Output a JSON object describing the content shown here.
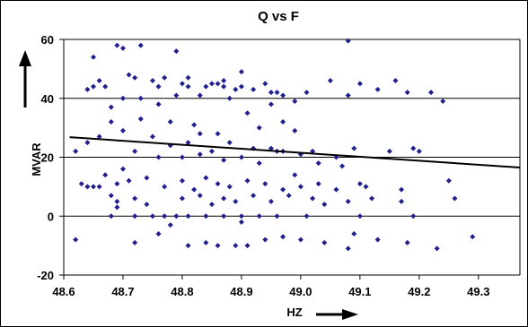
{
  "chart_data": {
    "type": "scatter",
    "title": "Q vs F",
    "xlabel": "HZ",
    "ylabel": "MVAR",
    "xlim": [
      48.6,
      49.37
    ],
    "ylim": [
      -20,
      60
    ],
    "xticks": [
      "48.6",
      "48.7",
      "48.8",
      "48.9",
      "49.0",
      "49.1",
      "49.2",
      "49.3"
    ],
    "yticks": [
      "60",
      "40",
      "20",
      "0",
      "-20"
    ],
    "xtick_values": [
      48.6,
      48.7,
      48.8,
      48.9,
      49.0,
      49.1,
      49.2,
      49.3
    ],
    "ytick_values": [
      60,
      40,
      20,
      0,
      -20
    ],
    "grid": "horizontal",
    "legend": "none",
    "marker_color": "#1f1f8f",
    "trendline": {
      "x": [
        48.61,
        49.37
      ],
      "y": [
        26.8,
        16.5
      ],
      "color": "#000000"
    },
    "series": [
      {
        "points": [
          [
            48.65,
            54
          ],
          [
            48.69,
            58
          ],
          [
            48.7,
            57
          ],
          [
            48.73,
            58
          ],
          [
            48.79,
            56
          ],
          [
            49.08,
            59.5
          ],
          [
            48.64,
            43
          ],
          [
            48.65,
            44
          ],
          [
            48.66,
            46
          ],
          [
            48.67,
            44
          ],
          [
            48.71,
            48
          ],
          [
            48.72,
            47
          ],
          [
            48.75,
            46
          ],
          [
            48.77,
            47
          ],
          [
            48.8,
            45
          ],
          [
            48.81,
            44
          ],
          [
            48.84,
            44
          ],
          [
            48.85,
            45
          ],
          [
            48.86,
            45
          ],
          [
            48.87,
            44
          ],
          [
            48.89,
            43
          ],
          [
            48.9,
            44
          ],
          [
            48.92,
            43
          ],
          [
            48.94,
            45
          ],
          [
            48.97,
            41
          ],
          [
            49.01,
            42
          ],
          [
            49.05,
            46
          ],
          [
            49.1,
            45
          ],
          [
            49.13,
            43
          ],
          [
            49.16,
            46
          ],
          [
            49.18,
            42
          ],
          [
            49.22,
            42
          ],
          [
            49.24,
            39
          ],
          [
            48.68,
            37
          ],
          [
            48.7,
            40
          ],
          [
            48.73,
            40
          ],
          [
            48.76,
            38
          ],
          [
            48.79,
            41
          ],
          [
            48.83,
            41
          ],
          [
            48.88,
            40
          ],
          [
            48.95,
            38
          ],
          [
            48.99,
            39
          ],
          [
            49.08,
            41
          ],
          [
            48.81,
            47
          ],
          [
            48.9,
            49
          ],
          [
            48.96,
            42
          ],
          [
            48.68,
            32
          ],
          [
            48.73,
            33
          ],
          [
            48.78,
            32
          ],
          [
            48.82,
            31
          ],
          [
            48.86,
            28
          ],
          [
            48.91,
            35
          ],
          [
            48.93,
            30
          ],
          [
            48.97,
            32
          ],
          [
            48.99,
            29
          ],
          [
            48.7,
            29
          ],
          [
            48.75,
            27
          ],
          [
            48.78,
            24
          ],
          [
            48.81,
            25
          ],
          [
            48.85,
            22
          ],
          [
            48.88,
            25
          ],
          [
            48.92,
            23
          ],
          [
            48.95,
            23
          ],
          [
            48.97,
            22
          ],
          [
            49.0,
            21
          ],
          [
            49.02,
            22
          ],
          [
            49.06,
            20
          ],
          [
            49.09,
            23
          ],
          [
            49.15,
            22
          ],
          [
            49.2,
            22
          ],
          [
            49.19,
            23
          ],
          [
            48.62,
            22
          ],
          [
            48.64,
            25
          ],
          [
            48.66,
            27
          ],
          [
            48.72,
            22
          ],
          [
            48.76,
            20
          ],
          [
            48.8,
            20
          ],
          [
            48.83,
            21
          ],
          [
            48.87,
            19
          ],
          [
            48.9,
            20
          ],
          [
            48.93,
            18
          ],
          [
            48.96,
            22
          ],
          [
            49.03,
            18
          ],
          [
            49.07,
            17
          ],
          [
            48.63,
            11
          ],
          [
            48.64,
            10
          ],
          [
            48.65,
            10
          ],
          [
            48.66,
            10
          ],
          [
            48.67,
            14
          ],
          [
            48.69,
            11
          ],
          [
            48.71,
            12
          ],
          [
            48.74,
            13
          ],
          [
            48.77,
            10
          ],
          [
            48.8,
            12
          ],
          [
            48.82,
            9
          ],
          [
            48.84,
            13
          ],
          [
            48.86,
            11
          ],
          [
            48.88,
            10
          ],
          [
            48.91,
            12
          ],
          [
            48.94,
            11
          ],
          [
            48.97,
            9
          ],
          [
            49.0,
            10
          ],
          [
            49.03,
            11
          ],
          [
            49.06,
            9
          ],
          [
            49.1,
            11
          ],
          [
            49.11,
            10
          ],
          [
            49.17,
            9
          ],
          [
            49.25,
            12
          ],
          [
            48.68,
            7
          ],
          [
            48.69,
            5
          ],
          [
            48.72,
            6
          ],
          [
            48.74,
            4
          ],
          [
            48.8,
            6
          ],
          [
            48.83,
            7
          ],
          [
            48.85,
            4
          ],
          [
            48.87,
            6
          ],
          [
            48.89,
            5
          ],
          [
            48.92,
            7
          ],
          [
            48.95,
            5
          ],
          [
            48.98,
            7
          ],
          [
            49.02,
            6
          ],
          [
            49.08,
            5
          ],
          [
            49.12,
            6
          ],
          [
            49.17,
            5
          ],
          [
            49.26,
            6
          ],
          [
            48.68,
            0
          ],
          [
            48.72,
            0
          ],
          [
            48.75,
            0
          ],
          [
            48.77,
            0
          ],
          [
            48.79,
            0
          ],
          [
            48.81,
            0
          ],
          [
            48.84,
            0
          ],
          [
            48.87,
            0
          ],
          [
            48.9,
            0
          ],
          [
            48.93,
            0
          ],
          [
            48.96,
            0
          ],
          [
            49.01,
            0
          ],
          [
            49.1,
            0
          ],
          [
            49.19,
            0
          ],
          [
            48.62,
            -8
          ],
          [
            48.72,
            -9
          ],
          [
            48.76,
            -6
          ],
          [
            48.81,
            -10
          ],
          [
            48.84,
            -9
          ],
          [
            48.86,
            -10
          ],
          [
            48.89,
            -10
          ],
          [
            48.91,
            -10
          ],
          [
            48.94,
            -8
          ],
          [
            48.97,
            -7
          ],
          [
            49.0,
            -8
          ],
          [
            49.04,
            -9
          ],
          [
            49.08,
            -11
          ],
          [
            49.13,
            -8
          ],
          [
            49.18,
            -9
          ],
          [
            49.23,
            -11
          ],
          [
            49.29,
            -7
          ],
          [
            48.78,
            -3
          ],
          [
            48.9,
            -2
          ],
          [
            49.09,
            -6
          ],
          [
            48.69,
            3
          ],
          [
            48.99,
            14
          ],
          [
            48.83,
            28
          ],
          [
            48.95,
            42
          ],
          [
            48.76,
            44
          ],
          [
            48.87,
            46
          ],
          [
            48.7,
            16
          ],
          [
            49.04,
            4
          ]
        ]
      }
    ]
  }
}
